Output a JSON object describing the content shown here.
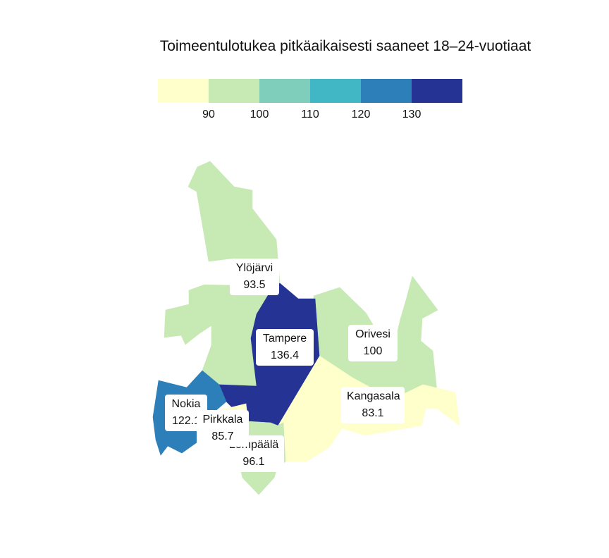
{
  "title": "Toimeentulotukea pitkäaikaisesti saaneet 18–24-vuotiaat",
  "legend": {
    "colors": [
      "#ffffcc",
      "#c7e9b4",
      "#7fcdbb",
      "#41b6c4",
      "#2c7fb8",
      "#253494"
    ],
    "ticks": [
      "90",
      "100",
      "110",
      "120",
      "130"
    ]
  },
  "regions": [
    {
      "name": "Ylöjärvi",
      "value": "93.5",
      "color": "#c7e9b4"
    },
    {
      "name": "Tampere",
      "value": "136.4",
      "color": "#253494"
    },
    {
      "name": "Orivesi",
      "value": "100",
      "color": "#c7e9b4"
    },
    {
      "name": "Kangasala",
      "value": "83.1",
      "color": "#ffffcc"
    },
    {
      "name": "Nokia",
      "value": "122.1",
      "color": "#2c7fb8"
    },
    {
      "name": "Pirkkala",
      "value": "85.7",
      "color": "#ffffcc"
    },
    {
      "name": "Lempäälä",
      "value": "96.1",
      "color": "#c7e9b4"
    }
  ]
}
